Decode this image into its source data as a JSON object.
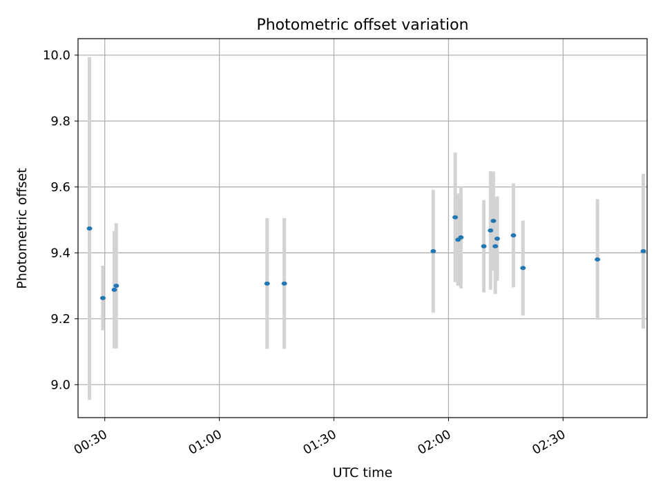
{
  "chart_data": {
    "type": "scatter",
    "title": "Photometric offset variation",
    "xlabel": "UTC time",
    "ylabel": "Photometric offset",
    "x_unit": "time of day (UTC)",
    "xlim": [
      "00:23:00",
      "02:52:00"
    ],
    "ylim": [
      8.9,
      10.05
    ],
    "x_ticks": [
      "00:30",
      "01:00",
      "01:30",
      "02:00",
      "02:30"
    ],
    "y_ticks": [
      "9.0",
      "9.2",
      "9.4",
      "9.6",
      "9.8",
      "10.0"
    ],
    "grid": true,
    "marker_color": "#1f77b4",
    "errorbar_color": "#d3d3d3",
    "points": [
      {
        "time": "00:26:00",
        "y": 9.474,
        "yerr": 0.52
      },
      {
        "time": "00:29:30",
        "y": 9.263,
        "yerr": 0.098
      },
      {
        "time": "00:32:30",
        "y": 9.288,
        "yerr": 0.178
      },
      {
        "time": "00:33:00",
        "y": 9.3,
        "yerr": 0.19
      },
      {
        "time": "01:12:30",
        "y": 9.307,
        "yerr": 0.198
      },
      {
        "time": "01:17:00",
        "y": 9.307,
        "yerr": 0.198
      },
      {
        "time": "01:56:00",
        "y": 9.405,
        "yerr": 0.186
      },
      {
        "time": "02:01:45",
        "y": 9.508,
        "yerr": 0.197
      },
      {
        "time": "02:02:30",
        "y": 9.44,
        "yerr": 0.14
      },
      {
        "time": "02:03:15",
        "y": 9.447,
        "yerr": 0.155
      },
      {
        "time": "02:09:15",
        "y": 9.42,
        "yerr": 0.14
      },
      {
        "time": "02:11:00",
        "y": 9.468,
        "yerr": 0.18
      },
      {
        "time": "02:11:45",
        "y": 9.497,
        "yerr": 0.15
      },
      {
        "time": "02:12:15",
        "y": 9.42,
        "yerr": 0.145
      },
      {
        "time": "02:12:45",
        "y": 9.443,
        "yerr": 0.128
      },
      {
        "time": "02:17:00",
        "y": 9.453,
        "yerr": 0.158
      },
      {
        "time": "02:19:30",
        "y": 9.354,
        "yerr": 0.144
      },
      {
        "time": "02:39:00",
        "y": 9.38,
        "yerr": 0.183
      },
      {
        "time": "02:51:00",
        "y": 9.405,
        "yerr": 0.235
      }
    ]
  }
}
